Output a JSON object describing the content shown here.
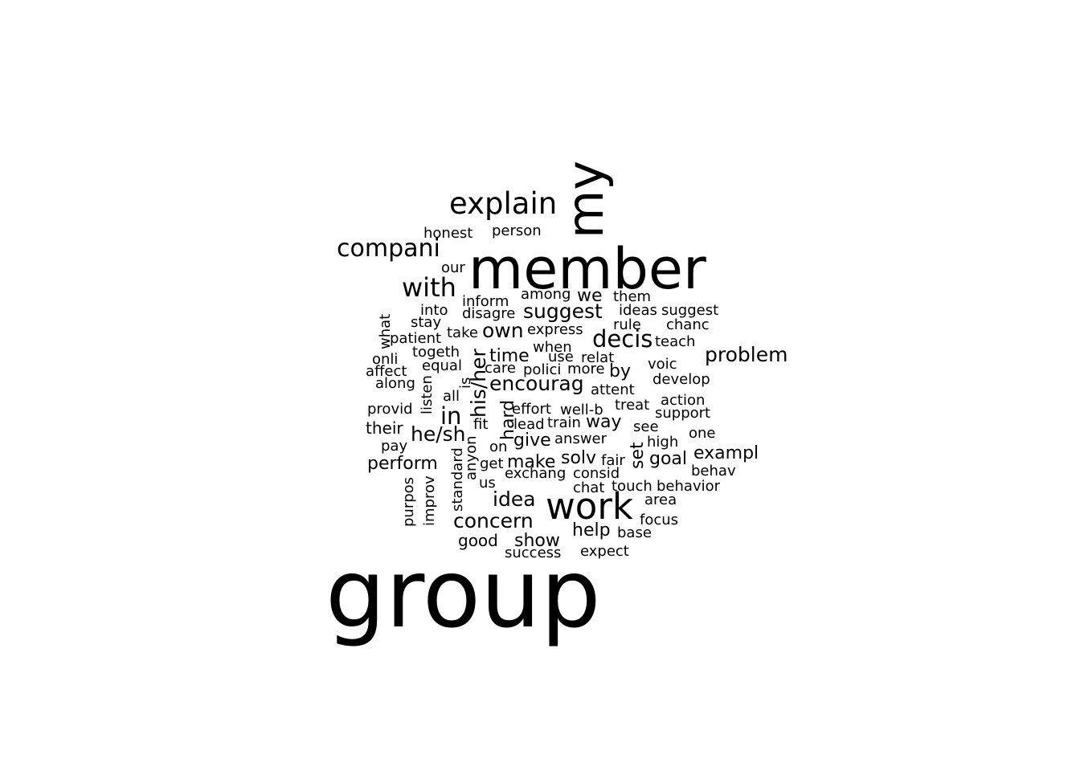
{
  "words": [
    {
      "text": "group"
    },
    {
      "text": "member"
    },
    {
      "text": "my"
    },
    {
      "text": "work"
    },
    {
      "text": "explain"
    },
    {
      "text": "compani"
    },
    {
      "text": "with"
    },
    {
      "text": "decis"
    },
    {
      "text": "problem"
    },
    {
      "text": "encourag"
    },
    {
      "text": "suggest"
    },
    {
      "text": "own"
    },
    {
      "text": "concern"
    },
    {
      "text": "idea"
    },
    {
      "text": "his/her"
    },
    {
      "text": "in"
    },
    {
      "text": "he/sh"
    },
    {
      "text": "perform"
    },
    {
      "text": "time"
    },
    {
      "text": "exampl"
    },
    {
      "text": "goal"
    },
    {
      "text": "help"
    },
    {
      "text": "show"
    },
    {
      "text": "make"
    },
    {
      "text": "solv"
    },
    {
      "text": "give"
    },
    {
      "text": "by"
    },
    {
      "text": "way"
    },
    {
      "text": "set"
    },
    {
      "text": "hard"
    },
    {
      "text": "we"
    },
    {
      "text": "honest"
    },
    {
      "text": "person"
    },
    {
      "text": "our"
    },
    {
      "text": "among"
    },
    {
      "text": "them"
    },
    {
      "text": "inform"
    },
    {
      "text": "into"
    },
    {
      "text": "disagre"
    },
    {
      "text": "ideas"
    },
    {
      "text": "suggest"
    },
    {
      "text": "stay"
    },
    {
      "text": "what"
    },
    {
      "text": "take"
    },
    {
      "text": "express"
    },
    {
      "text": "rule"
    },
    {
      "text": "chanc"
    },
    {
      "text": "patient"
    },
    {
      "text": "teach"
    },
    {
      "text": "togeth"
    },
    {
      "text": "when"
    },
    {
      "text": "onli"
    },
    {
      "text": "use"
    },
    {
      "text": "relat"
    },
    {
      "text": "equal"
    },
    {
      "text": "care"
    },
    {
      "text": "polici"
    },
    {
      "text": "more"
    },
    {
      "text": "voic"
    },
    {
      "text": "affect"
    },
    {
      "text": "develop"
    },
    {
      "text": "along"
    },
    {
      "text": "is"
    },
    {
      "text": "listen"
    },
    {
      "text": "attent"
    },
    {
      "text": "all"
    },
    {
      "text": "action"
    },
    {
      "text": "provid"
    },
    {
      "text": "effort"
    },
    {
      "text": "well-b"
    },
    {
      "text": "treat"
    },
    {
      "text": "support"
    },
    {
      "text": "their"
    },
    {
      "text": "fit"
    },
    {
      "text": "lead"
    },
    {
      "text": "train"
    },
    {
      "text": "see"
    },
    {
      "text": "one"
    },
    {
      "text": "answer"
    },
    {
      "text": "anyon"
    },
    {
      "text": "pay"
    },
    {
      "text": "on"
    },
    {
      "text": "high"
    },
    {
      "text": "fair"
    },
    {
      "text": "get"
    },
    {
      "text": "standard"
    },
    {
      "text": "behav"
    },
    {
      "text": "exchang"
    },
    {
      "text": "consid"
    },
    {
      "text": "purpos"
    },
    {
      "text": "improv"
    },
    {
      "text": "us"
    },
    {
      "text": "chat"
    },
    {
      "text": "touch"
    },
    {
      "text": "behavior"
    },
    {
      "text": "area"
    },
    {
      "text": "focus"
    },
    {
      "text": "base"
    },
    {
      "text": "good"
    },
    {
      "text": "success"
    },
    {
      "text": "expect"
    }
  ]
}
